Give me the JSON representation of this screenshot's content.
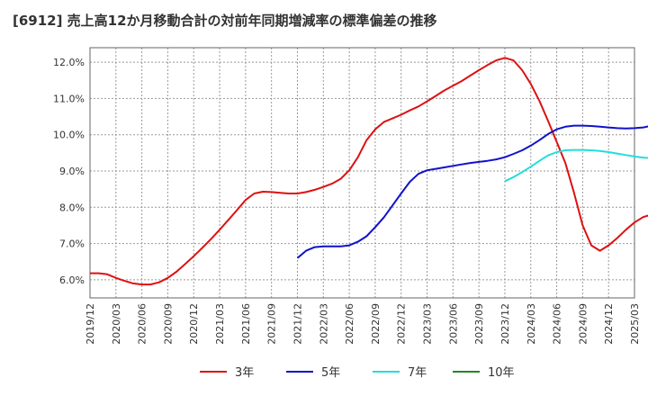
{
  "chart_data": {
    "type": "line",
    "title": "[6912]  売上高12か月移動合計の対前年同期増減率の標準偏差の推移",
    "xlabel": "",
    "ylabel": "",
    "ylim": [
      5.5,
      12.4
    ],
    "yticks": [
      6.0,
      7.0,
      8.0,
      9.0,
      10.0,
      11.0,
      12.0
    ],
    "ytick_labels": [
      "6.0%",
      "7.0%",
      "8.0%",
      "9.0%",
      "10.0%",
      "11.0%",
      "12.0%"
    ],
    "xtick_labels": [
      "2019/12",
      "2020/03",
      "2020/06",
      "2020/09",
      "2020/12",
      "2021/03",
      "2021/06",
      "2021/09",
      "2021/12",
      "2022/03",
      "2022/06",
      "2022/09",
      "2022/12",
      "2023/03",
      "2023/06",
      "2023/09",
      "2023/12",
      "2024/03",
      "2024/06",
      "2024/09",
      "2024/12",
      "2025/03"
    ],
    "grid": true,
    "legend_position": "bottom",
    "series": [
      {
        "name": "3年",
        "color": "#dd1111",
        "start_index": 0,
        "values": [
          6.18,
          6.18,
          6.15,
          6.05,
          5.97,
          5.9,
          5.87,
          5.87,
          5.93,
          6.05,
          6.22,
          6.43,
          6.65,
          6.88,
          7.12,
          7.38,
          7.65,
          7.92,
          8.2,
          8.38,
          8.43,
          8.42,
          8.4,
          8.38,
          8.38,
          8.42,
          8.48,
          8.56,
          8.65,
          8.78,
          9.02,
          9.38,
          9.85,
          10.15,
          10.35,
          10.45,
          10.55,
          10.67,
          10.78,
          10.92,
          11.07,
          11.22,
          11.35,
          11.48,
          11.63,
          11.78,
          11.92,
          12.05,
          12.12,
          12.05,
          11.78,
          11.4,
          10.93,
          10.38,
          9.8,
          9.22,
          8.4,
          7.5,
          6.95,
          6.8,
          6.95,
          7.15,
          7.38,
          7.58,
          7.73,
          7.8,
          7.79
        ]
      },
      {
        "name": "5年",
        "color": "#1111cc",
        "start_index": 24,
        "values": [
          6.6,
          6.8,
          6.9,
          6.92,
          6.92,
          6.92,
          6.95,
          7.05,
          7.2,
          7.45,
          7.72,
          8.05,
          8.38,
          8.7,
          8.92,
          9.02,
          9.06,
          9.1,
          9.14,
          9.18,
          9.22,
          9.25,
          9.28,
          9.32,
          9.38,
          9.47,
          9.57,
          9.7,
          9.85,
          10.02,
          10.15,
          10.22,
          10.25,
          10.25,
          10.24,
          10.22,
          10.2,
          10.18,
          10.17,
          10.18,
          10.2,
          10.25,
          10.3,
          10.35,
          10.38,
          10.39,
          10.39,
          10.38,
          10.36
        ]
      },
      {
        "name": "7年",
        "color": "#22dddd",
        "start_index": 48,
        "values": [
          8.72,
          8.83,
          8.97,
          9.12,
          9.28,
          9.43,
          9.52,
          9.57,
          9.58,
          9.58,
          9.57,
          9.55,
          9.52,
          9.48,
          9.44,
          9.4,
          9.37,
          9.35,
          9.33,
          9.3,
          9.26,
          9.22,
          9.18,
          9.12,
          9.09
        ]
      },
      {
        "name": "10年",
        "color": "#228822",
        "start_index": 0,
        "values": []
      }
    ]
  }
}
